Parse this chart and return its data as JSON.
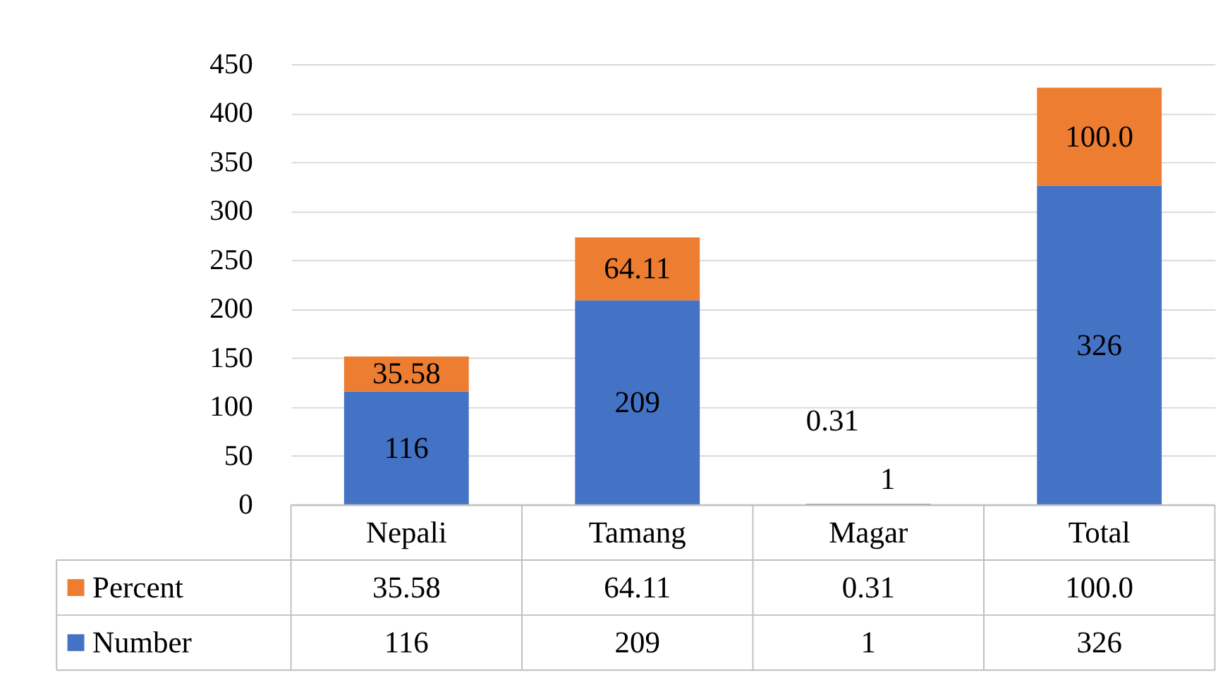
{
  "chart_data": {
    "type": "bar",
    "stacked": true,
    "categories": [
      "Nepali",
      "Tamang",
      "Magar",
      "Total"
    ],
    "series": [
      {
        "name": "Number",
        "color": "#4472c4",
        "values": [
          116,
          209,
          1,
          326
        ],
        "value_labels": [
          "116",
          "209",
          "1",
          "326"
        ]
      },
      {
        "name": "Percent",
        "color": "#ed7d31",
        "values": [
          35.58,
          64.11,
          0.31,
          100.0
        ],
        "value_labels": [
          "35.58",
          "64.11",
          "0.31",
          "100.0"
        ]
      }
    ],
    "ylim": [
      0,
      450
    ],
    "yticks": [
      0,
      50,
      100,
      150,
      200,
      250,
      300,
      350,
      400,
      450
    ],
    "grid": "y",
    "legend": "bottom"
  }
}
